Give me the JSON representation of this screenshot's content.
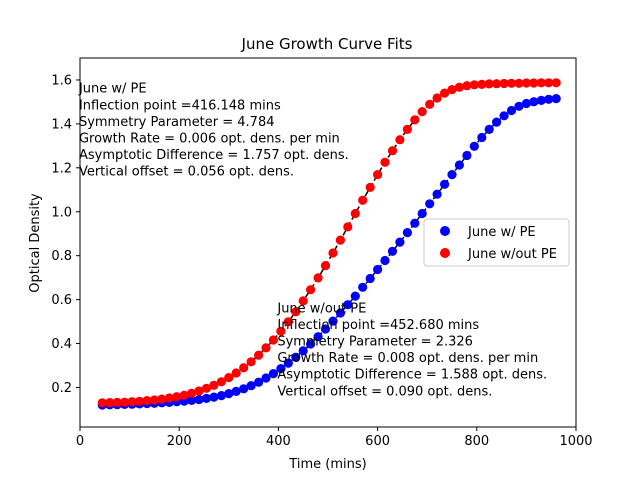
{
  "chart_data": {
    "type": "scatter",
    "title": "June Growth Curve Fits",
    "xlabel": "Time (mins)",
    "ylabel": "Optical Density",
    "xlim": [
      0,
      1000
    ],
    "ylim": [
      0.02,
      1.7
    ],
    "xticks": [
      0,
      200,
      400,
      600,
      800,
      1000
    ],
    "yticks": [
      0.2,
      0.4,
      0.6,
      0.8,
      1.0,
      1.2,
      1.4,
      1.6
    ],
    "xtick_labels": [
      "0",
      "200",
      "400",
      "600",
      "800",
      "1000"
    ],
    "ytick_labels": [
      "0.2",
      "0.4",
      "0.6",
      "0.8",
      "1.0",
      "1.2",
      "1.4",
      "1.6"
    ],
    "grid": false,
    "legend": {
      "placement": "center-right",
      "entries": [
        "June w/ PE",
        "June w/out PE"
      ]
    },
    "annotations": [
      {
        "lines": [
          "June w/ PE",
          "Inflection point =416.148 mins",
          "Symmetry Parameter = 4.784",
          "Growth Rate = 0.006 opt. dens. per min",
          "Asymptotic Difference = 1.757 opt. dens.",
          "Vertical offset = 0.056 opt. dens."
        ],
        "anchor": [
          10,
          1.565
        ]
      },
      {
        "lines": [
          "June w/out PE",
          "Inflection point =452.680 mins",
          "Symmetry Parameter = 2.326",
          "Growth Rate = 0.008 opt. dens. per min",
          "Asymptotic Difference = 1.588 opt. dens.",
          "Vertical offset = 0.090 opt. dens."
        ],
        "anchor": [
          410,
          0.565
        ]
      }
    ],
    "x_start": 45,
    "x_step": 15,
    "series": [
      {
        "name": "June w/ PE",
        "color": "#0000ff",
        "y": [
          0.12,
          0.121,
          0.122,
          0.123,
          0.124,
          0.125,
          0.127,
          0.128,
          0.13,
          0.132,
          0.135,
          0.138,
          0.141,
          0.145,
          0.15,
          0.156,
          0.163,
          0.172,
          0.182,
          0.194,
          0.208,
          0.224,
          0.243,
          0.263,
          0.286,
          0.311,
          0.338,
          0.367,
          0.398,
          0.431,
          0.466,
          0.502,
          0.539,
          0.577,
          0.616,
          0.656,
          0.696,
          0.737,
          0.778,
          0.82,
          0.862,
          0.905,
          0.948,
          0.992,
          1.036,
          1.08,
          1.125,
          1.169,
          1.213,
          1.256,
          1.298,
          1.338,
          1.375,
          1.408,
          1.437,
          1.461,
          1.48,
          1.493,
          1.501,
          1.507,
          1.512,
          1.515
        ]
      },
      {
        "name": "June w/out PE",
        "color": "#ff0000",
        "y": [
          0.13,
          0.131,
          0.132,
          0.133,
          0.135,
          0.137,
          0.14,
          0.143,
          0.147,
          0.152,
          0.158,
          0.165,
          0.174,
          0.184,
          0.196,
          0.21,
          0.226,
          0.245,
          0.266,
          0.29,
          0.317,
          0.347,
          0.38,
          0.416,
          0.456,
          0.499,
          0.545,
          0.594,
          0.645,
          0.699,
          0.755,
          0.812,
          0.871,
          0.931,
          0.992,
          1.052,
          1.111,
          1.169,
          1.225,
          1.278,
          1.328,
          1.375,
          1.418,
          1.456,
          1.489,
          1.518,
          1.54,
          1.556,
          1.567,
          1.574,
          1.578,
          1.58,
          1.582,
          1.583,
          1.584,
          1.585,
          1.585,
          1.586,
          1.586,
          1.587,
          1.587,
          1.587
        ]
      }
    ],
    "fit_style": "black dashed"
  }
}
